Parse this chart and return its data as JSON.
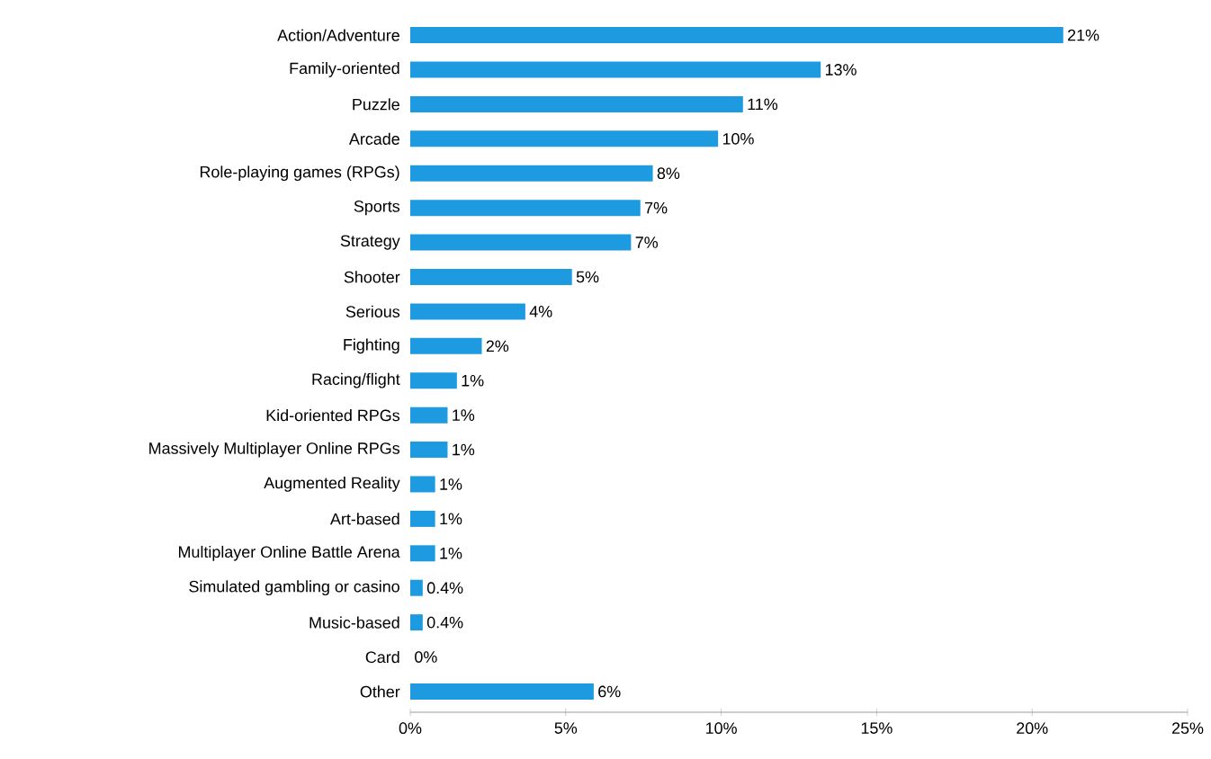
{
  "chart_data": {
    "type": "bar",
    "orientation": "horizontal",
    "color": "#1e9be0",
    "categories": [
      "Action/Adventure",
      "Family-oriented",
      "Puzzle",
      "Arcade",
      "Role-playing games (RPGs)",
      "Sports",
      "Strategy",
      "Shooter",
      "Serious",
      "Fighting",
      "Racing/flight",
      "Kid-oriented RPGs",
      "Massively Multiplayer Online RPGs",
      "Augmented Reality",
      "Art-based",
      "Multiplayer Online Battle Arena",
      "Simulated gambling or casino",
      "Music-based",
      "Card",
      "Other"
    ],
    "values": [
      21,
      13.2,
      10.7,
      9.9,
      7.8,
      7.4,
      7.1,
      5.2,
      3.7,
      2.3,
      1.5,
      1.2,
      1.2,
      0.8,
      0.8,
      0.8,
      0.4,
      0.4,
      0,
      5.9
    ],
    "value_labels": [
      "21%",
      "13%",
      "11%",
      "10%",
      "8%",
      "7%",
      "7%",
      "5%",
      "4%",
      "2%",
      "1%",
      "1%",
      "1%",
      "1%",
      "1%",
      "1%",
      "0.4%",
      "0.4%",
      "0%",
      "6%"
    ],
    "xlim": [
      0,
      25
    ],
    "xticks": [
      {
        "value": 0,
        "label": "0%"
      },
      {
        "value": 5,
        "label": "5%"
      },
      {
        "value": 10,
        "label": "10%"
      },
      {
        "value": 15,
        "label": "15%"
      },
      {
        "value": 20,
        "label": "20%"
      },
      {
        "value": 25,
        "label": "25%"
      }
    ]
  }
}
